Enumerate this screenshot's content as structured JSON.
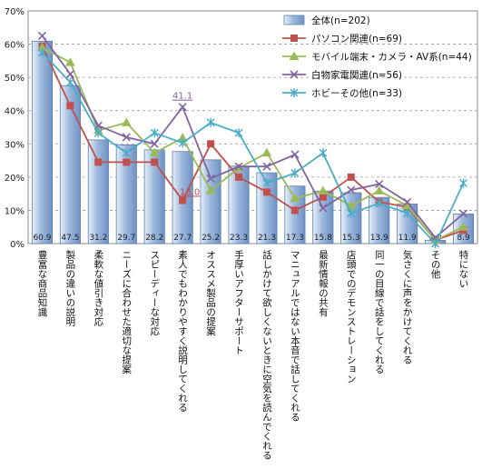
{
  "chart_data": {
    "type": "bar",
    "y_ticks": [
      "0%",
      "10%",
      "20%",
      "30%",
      "40%",
      "50%",
      "60%",
      "70%"
    ],
    "ylim": [
      0,
      70
    ],
    "grid": true,
    "legend_position": "top-right",
    "categories": [
      "豊富な商品知識",
      "製品の違いの説明",
      "柔軟な値引き対応",
      "ニーズに合わせた適切な提案",
      "スピーディーな対応",
      "素人でもわかりやすく説明してくれる",
      "オススメ製品の提案",
      "手厚いアフターサポート",
      "話しかけて欲しくないときに空気を読んでくれる",
      "マニュアルではない本音で話してくれる",
      "最新情報の共有",
      "店頭でのデモンストレーション",
      "同一の目線で話をしてくれる",
      "気さくに声をかけてくれる",
      "その他",
      "特にない"
    ],
    "bar_series": {
      "name": "全体(n=202)",
      "color": "#9db9dd",
      "values": [
        60.9,
        47.5,
        31.2,
        29.7,
        28.2,
        27.7,
        25.2,
        23.3,
        21.3,
        17.3,
        15.8,
        15.3,
        13.9,
        11.9,
        1.0,
        8.9
      ],
      "value_labels": [
        "60.9",
        "47.5",
        "31.2",
        "29.7",
        "28.2",
        "27.7",
        "25.2",
        "23.3",
        "21.3",
        "17.3",
        "15.8",
        "15.3",
        "13.9",
        "11.9",
        "1.0",
        "8.9"
      ]
    },
    "line_series": [
      {
        "name": "パソコン関連(n=69)",
        "color": "#c0504d",
        "marker": "square",
        "values": [
          59.4,
          41.5,
          24.5,
          24.5,
          24.5,
          13.0,
          30.0,
          20.0,
          15.5,
          10.0,
          14.0,
          20.0,
          12.5,
          11.0,
          1.0,
          4.0
        ]
      },
      {
        "name": "モバイル端末・カメラ・AV系(n=44)",
        "color": "#9bbb59",
        "marker": "triangle",
        "values": [
          59.0,
          54.5,
          34.0,
          36.4,
          27.3,
          31.8,
          16.0,
          22.7,
          27.3,
          13.6,
          15.9,
          11.4,
          15.9,
          11.4,
          1.0,
          5.0
        ]
      },
      {
        "name": "白物家電関連(n=56)",
        "color": "#8064a2",
        "marker": "x",
        "values": [
          62.5,
          51.0,
          35.5,
          32.0,
          30.0,
          41.1,
          19.6,
          23.2,
          23.2,
          26.8,
          10.7,
          16.1,
          17.9,
          12.5,
          1.8,
          9.0
        ]
      },
      {
        "name": "ホビーその他(n=33)",
        "color": "#4bacc6",
        "marker": "asterisk",
        "values": [
          57.5,
          48.5,
          33.3,
          27.3,
          33.3,
          30.3,
          36.4,
          33.3,
          18.2,
          21.2,
          27.3,
          9.1,
          12.1,
          9.1,
          0.0,
          18.2
        ]
      }
    ],
    "annotations": [
      {
        "text": "41.1",
        "series": "白物家電関連(n=56)",
        "category_index": 5
      },
      {
        "text": "13.0",
        "series": "パソコン関連(n=69)",
        "category_index": 5
      }
    ]
  }
}
